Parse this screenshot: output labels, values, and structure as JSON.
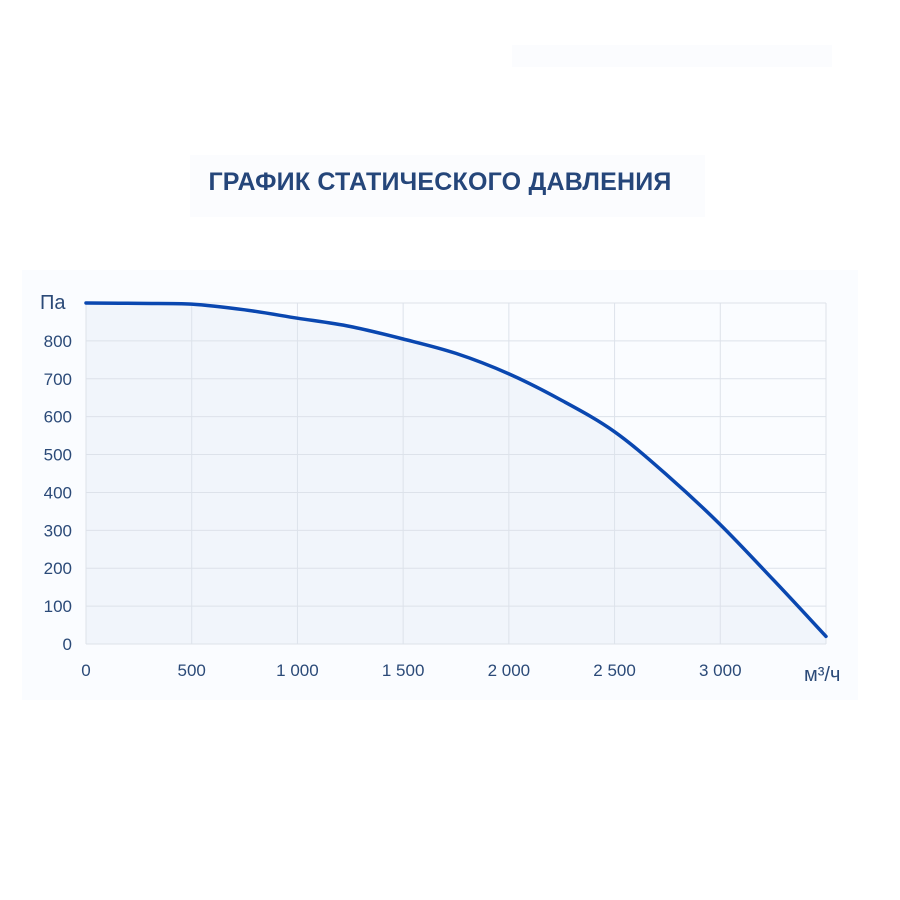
{
  "colors": {
    "title": "#25467a",
    "line": "#0a47b0",
    "fill": "#f1f5fb",
    "grid": "#dde2ea",
    "text": "#2b4a78"
  },
  "chart_data": {
    "type": "line",
    "title": "ГРАФИК СТАТИЧЕСКОГО ДАВЛЕНИЯ",
    "xlabel": "м³/ч",
    "ylabel": "Па",
    "xlim": [
      0,
      3500
    ],
    "ylim": [
      0,
      900
    ],
    "xticks": [
      0,
      500,
      1000,
      1500,
      2000,
      2500,
      3000
    ],
    "xtick_labels": [
      "0",
      "500",
      "1 000",
      "1 500",
      "2 000",
      "2 500",
      "3 000"
    ],
    "yticks": [
      0,
      100,
      200,
      300,
      400,
      500,
      600,
      700,
      800
    ],
    "ytick_labels": [
      "0",
      "100",
      "200",
      "300",
      "400",
      "500",
      "600",
      "700",
      "800"
    ],
    "grid": true,
    "series": [
      {
        "x": [
          0,
          250,
          500,
          750,
          1000,
          1250,
          1500,
          1750,
          2000,
          2250,
          2500,
          2750,
          3000,
          3250,
          3500
        ],
        "y": [
          900,
          899,
          897,
          882,
          860,
          838,
          805,
          767,
          713,
          643,
          560,
          445,
          315,
          170,
          20
        ]
      }
    ]
  }
}
